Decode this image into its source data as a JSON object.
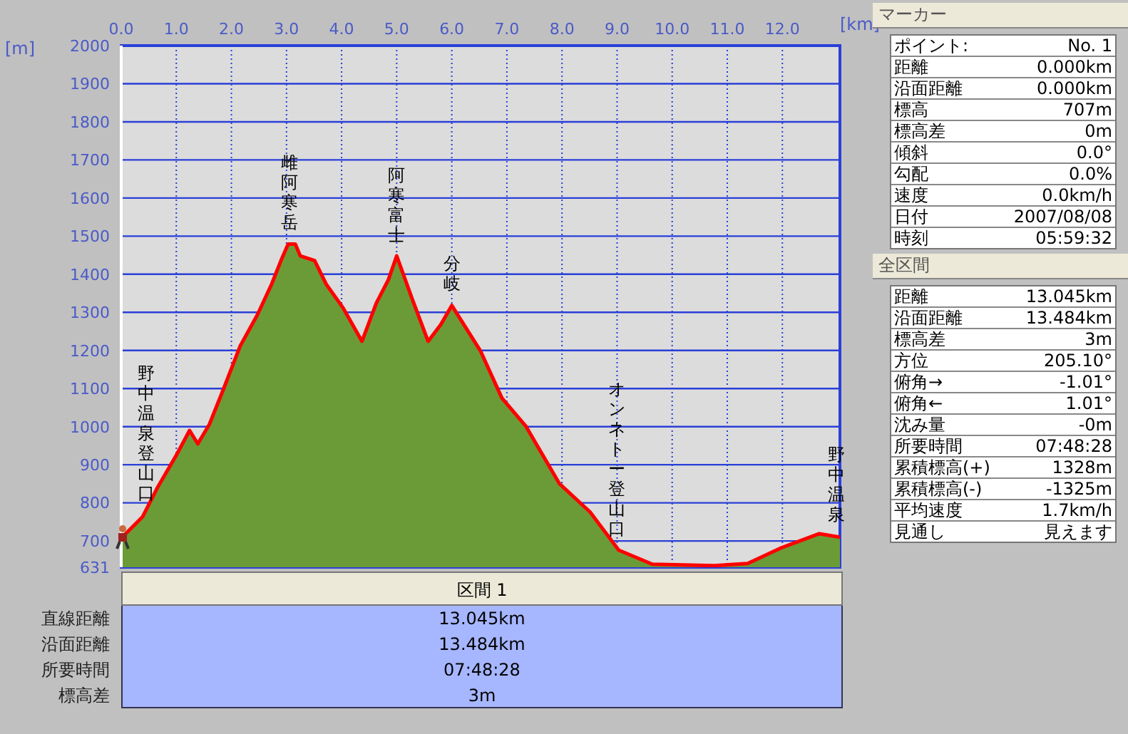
{
  "chart_data": [
    {
      "type": "area",
      "xlabel": "[km]",
      "ylabel": "[m]",
      "xlim": [
        0,
        13.045
      ],
      "ylim": [
        631,
        2000
      ],
      "xticks": [
        {
          "value": 0,
          "label": "0.0"
        },
        {
          "value": 1,
          "label": "1.0"
        },
        {
          "value": 2,
          "label": "2.0"
        },
        {
          "value": 3,
          "label": "3.0"
        },
        {
          "value": 4,
          "label": "4.0"
        },
        {
          "value": 5,
          "label": "5.0"
        },
        {
          "value": 6,
          "label": "6.0"
        },
        {
          "value": 7,
          "label": "7.0"
        },
        {
          "value": 8,
          "label": "8.0"
        },
        {
          "value": 9,
          "label": "9.0"
        },
        {
          "value": 10,
          "label": "10.0"
        },
        {
          "value": 11,
          "label": "11.0"
        },
        {
          "value": 12,
          "label": "12.0"
        }
      ],
      "yticks": [
        631,
        700,
        800,
        900,
        1000,
        1100,
        1200,
        1300,
        1400,
        1500,
        1600,
        1700,
        1800,
        1900,
        2000
      ],
      "grid": true,
      "x": [
        0,
        0.39,
        0.65,
        1.0,
        1.24,
        1.39,
        1.6,
        1.86,
        2.16,
        2.47,
        2.73,
        2.9,
        3.03,
        3.16,
        3.25,
        3.51,
        3.72,
        4.03,
        4.37,
        4.63,
        4.85,
        5.0,
        5.28,
        5.57,
        5.8,
        6.0,
        6.52,
        6.91,
        7.35,
        7.95,
        8.51,
        9.03,
        9.64,
        10.76,
        11.37,
        11.98,
        12.67,
        13.045
      ],
      "series": [
        {
          "type": "area",
          "color": "#6b9b37",
          "values": [
            707,
            764,
            838,
            925,
            990,
            955,
            1006,
            1100,
            1212,
            1293,
            1374,
            1436,
            1479,
            1479,
            1448,
            1436,
            1374,
            1311,
            1224,
            1324,
            1386,
            1448,
            1336,
            1224,
            1268,
            1318,
            1199,
            1075,
            1000,
            851,
            776,
            676,
            639,
            635,
            641,
            682,
            719,
            710
          ]
        },
        {
          "type": "line",
          "color": "#ff0000",
          "values": [
            707,
            764,
            838,
            925,
            990,
            955,
            1006,
            1100,
            1212,
            1293,
            1374,
            1436,
            1479,
            1479,
            1448,
            1436,
            1374,
            1311,
            1224,
            1324,
            1386,
            1448,
            1336,
            1224,
            1268,
            1318,
            1199,
            1075,
            1000,
            851,
            776,
            676,
            639,
            635,
            641,
            682,
            719,
            710
          ]
        }
      ],
      "annotations": [
        {
          "text": "野中温泉登山口",
          "x": 0.45,
          "y": 770
        },
        {
          "text": "雌阿寒岳",
          "x": 3.06,
          "y": 1479
        },
        {
          "text": "阿寒富士",
          "x": 5.0,
          "y": 1448
        },
        {
          "text": "分岐",
          "x": 6.0,
          "y": 1318
        },
        {
          "text": "オンネトー登山口",
          "x": 9.0,
          "y": 676
        },
        {
          "text": "野中温泉",
          "x": 12.98,
          "y": 712
        }
      ]
    },
    {
      "type": "other",
      "title": "マーカー",
      "annotations": [
        "ポイント:",
        "No. 1",
        "距離",
        "0.000km",
        "沿面距離",
        "0.000km",
        "標高",
        "707m",
        "標高差",
        "0m",
        "傾斜",
        "0.0°",
        "勾配",
        "0.0%",
        "速度",
        "0.0km/h",
        "日付",
        "2007/08/08",
        "時刻",
        "05:59:32"
      ]
    },
    {
      "type": "other",
      "title": "全区間",
      "annotations": [
        "距離",
        "13.045km",
        "沿面距離",
        "13.484km",
        "標高差",
        "3m",
        "方位",
        "205.10°",
        "俯角→",
        "-1.01°",
        "俯角←",
        "1.01°",
        "沈み量",
        "-0m",
        "所要時間",
        "07:48:28",
        "累積標高(+)",
        "1328m",
        "累積標高(-)",
        "-1325m",
        "平均速度",
        "1.7km/h",
        "見通し",
        "見えます"
      ]
    },
    {
      "type": "other",
      "title": "区間 1",
      "annotations": [
        "直線距離",
        "13.045km",
        "沿面距離",
        "13.484km",
        "所要時間",
        "07:48:28",
        "標高差",
        "3m"
      ]
    }
  ]
}
